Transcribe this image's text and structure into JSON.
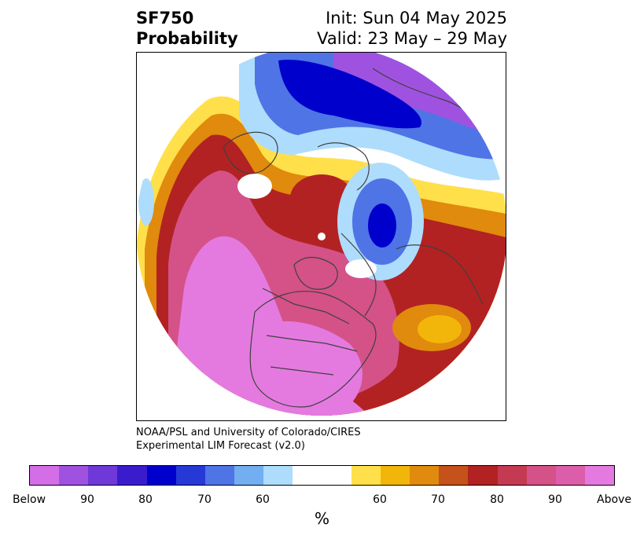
{
  "title": {
    "left_line1": "SF750",
    "left_line2": "Probability",
    "right_line1": "Init: Sun 04 May 2025",
    "right_line2": "Valid: 23 May – 29 May"
  },
  "credit": {
    "line1": "NOAA/PSL and University of Colorado/CIRES",
    "line2": "Experimental LIM Forecast (v2.0)"
  },
  "colorbar": {
    "colors": [
      "#d46ee6",
      "#9f52e0",
      "#6f38d9",
      "#3b1ccc",
      "#0000cc",
      "#2638d6",
      "#4f74e6",
      "#72aef0",
      "#aedcfc",
      "#ffffff",
      "#ffffff",
      "#ffe04a",
      "#f2b60a",
      "#e08a0e",
      "#c4521a",
      "#b22222",
      "#c43a52",
      "#d45288",
      "#dc5eaa",
      "#e47ae0"
    ],
    "tick_labels": [
      "Below",
      "90",
      "80",
      "70",
      "60",
      "60",
      "70",
      "80",
      "90",
      "Above"
    ],
    "unit": "%"
  }
}
